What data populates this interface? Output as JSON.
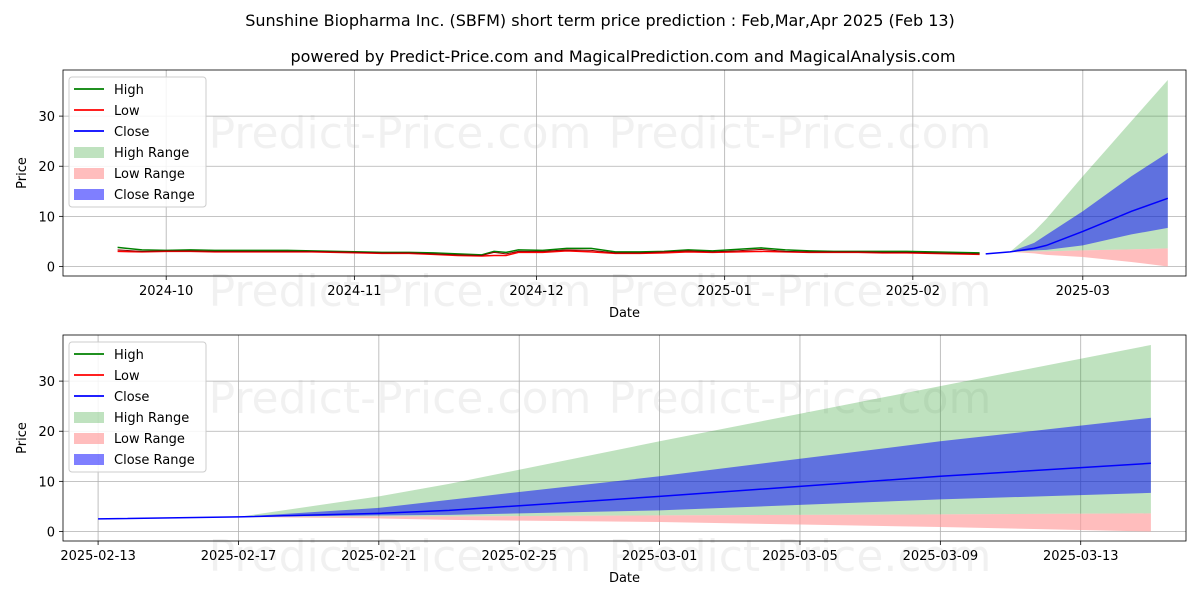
{
  "title": "Sunshine Biopharma Inc. (SBFM) short term price prediction : Feb,Mar,Apr 2025 (Feb 13)",
  "subtitle": "powered by Predict-Price.com and MagicalPrediction.com and MagicalAnalysis.com",
  "watermark": "Predict-Price.com",
  "colors": {
    "high": "#008000",
    "low": "#ff0000",
    "close": "#0000ff",
    "high_range": "#2ca02c",
    "low_range": "#ff9999",
    "close_range": "#0000ff",
    "grid": "#b0b0b0"
  },
  "chart_data": [
    {
      "type": "line",
      "xlabel": "Date",
      "ylabel": "Price",
      "grid": true,
      "legend": "upper-left",
      "legend_entries": [
        "High",
        "Low",
        "Close",
        "High Range",
        "Low Range",
        "Close Range"
      ],
      "xlim": [
        "2024-09-14",
        "2025-03-18"
      ],
      "ylim": [
        -1.9,
        39.2
      ],
      "xticks": [
        "2024-10-01",
        "2024-11-01",
        "2024-12-01",
        "2025-01-01",
        "2025-02-01",
        "2025-03-01"
      ],
      "xtick_labels": [
        "2024-10",
        "2024-11",
        "2024-12",
        "2025-01",
        "2025-02",
        "2025-03"
      ],
      "yticks": [
        0,
        10,
        20,
        30
      ],
      "history": {
        "dates": [
          "2024-09-23",
          "2024-09-27",
          "2024-10-01",
          "2024-10-05",
          "2024-10-09",
          "2024-10-13",
          "2024-10-17",
          "2024-10-21",
          "2024-10-25",
          "2024-10-29",
          "2024-11-02",
          "2024-11-06",
          "2024-11-10",
          "2024-11-14",
          "2024-11-18",
          "2024-11-22",
          "2024-11-24",
          "2024-11-26",
          "2024-11-28",
          "2024-12-02",
          "2024-12-06",
          "2024-12-10",
          "2024-12-14",
          "2024-12-18",
          "2024-12-22",
          "2024-12-26",
          "2024-12-30",
          "2025-01-03",
          "2025-01-07",
          "2025-01-11",
          "2025-01-15",
          "2025-01-19",
          "2025-01-23",
          "2025-01-27",
          "2025-01-31",
          "2025-02-04",
          "2025-02-08",
          "2025-02-12"
        ],
        "high": [
          3.8,
          3.3,
          3.2,
          3.3,
          3.2,
          3.2,
          3.2,
          3.2,
          3.1,
          3.0,
          2.9,
          2.8,
          2.8,
          2.7,
          2.5,
          2.3,
          3.0,
          2.8,
          3.3,
          3.2,
          3.6,
          3.6,
          2.9,
          2.9,
          3.0,
          3.3,
          3.1,
          3.4,
          3.7,
          3.3,
          3.1,
          3.0,
          3.0,
          3.0,
          3.0,
          2.9,
          2.8,
          2.7
        ],
        "low": [
          3.0,
          2.9,
          3.0,
          3.0,
          2.9,
          2.9,
          2.9,
          2.9,
          2.9,
          2.8,
          2.7,
          2.6,
          2.6,
          2.4,
          2.2,
          2.1,
          2.2,
          2.2,
          2.8,
          2.8,
          3.1,
          2.9,
          2.6,
          2.6,
          2.7,
          2.9,
          2.8,
          2.9,
          3.0,
          2.9,
          2.8,
          2.8,
          2.8,
          2.7,
          2.7,
          2.6,
          2.5,
          2.4
        ],
        "close": [
          3.3,
          3.0,
          3.1,
          3.1,
          3.0,
          3.0,
          3.0,
          3.0,
          3.0,
          2.9,
          2.8,
          2.7,
          2.7,
          2.5,
          2.3,
          2.2,
          2.8,
          2.5,
          3.0,
          3.0,
          3.3,
          3.2,
          2.7,
          2.7,
          2.9,
          3.1,
          2.9,
          3.1,
          3.4,
          3.0,
          2.9,
          2.9,
          2.9,
          2.8,
          2.8,
          2.7,
          2.6,
          2.5
        ]
      },
      "forecast": {
        "dates": [
          "2025-02-13",
          "2025-02-17",
          "2025-02-21",
          "2025-02-23",
          "2025-03-01",
          "2025-03-05",
          "2025-03-09",
          "2025-03-15"
        ],
        "close": [
          2.5,
          2.9,
          3.6,
          4.2,
          7.0,
          9.0,
          11.0,
          13.6
        ],
        "high_lo": [
          2.5,
          2.9,
          3.0,
          3.0,
          3.2,
          3.3,
          3.4,
          3.6
        ],
        "high_hi": [
          2.5,
          2.9,
          7.0,
          9.5,
          18.0,
          23.5,
          29.0,
          37.2
        ],
        "low_lo": [
          2.5,
          2.9,
          2.6,
          2.3,
          1.9,
          1.4,
          0.9,
          0.0
        ],
        "low_hi": [
          2.5,
          2.9,
          3.0,
          3.0,
          3.2,
          3.3,
          3.4,
          3.6
        ],
        "close_lo": [
          2.5,
          2.9,
          3.2,
          3.3,
          4.2,
          5.3,
          6.4,
          7.7
        ],
        "close_hi": [
          2.5,
          2.9,
          4.7,
          6.3,
          11.0,
          14.5,
          18.0,
          22.7
        ]
      }
    },
    {
      "type": "line",
      "xlabel": "Date",
      "ylabel": "Price",
      "grid": true,
      "legend": "upper-left",
      "legend_entries": [
        "High",
        "Low",
        "Close",
        "High Range",
        "Low Range",
        "Close Range"
      ],
      "xlim": [
        "2025-02-12",
        "2025-03-16"
      ],
      "ylim": [
        -1.9,
        39.2
      ],
      "xticks": [
        "2025-02-13",
        "2025-02-17",
        "2025-02-21",
        "2025-02-25",
        "2025-03-01",
        "2025-03-05",
        "2025-03-09",
        "2025-03-13"
      ],
      "xtick_labels": [
        "2025-02-13",
        "2025-02-17",
        "2025-02-21",
        "2025-02-25",
        "2025-03-01",
        "2025-03-05",
        "2025-03-09",
        "2025-03-13"
      ],
      "yticks": [
        0,
        10,
        20,
        30
      ],
      "forecast": {
        "dates": [
          "2025-02-13",
          "2025-02-17",
          "2025-02-21",
          "2025-02-23",
          "2025-03-01",
          "2025-03-05",
          "2025-03-09",
          "2025-03-15"
        ],
        "close": [
          2.5,
          2.9,
          3.6,
          4.2,
          7.0,
          9.0,
          11.0,
          13.6
        ],
        "high_lo": [
          2.5,
          2.9,
          3.0,
          3.0,
          3.2,
          3.3,
          3.4,
          3.6
        ],
        "high_hi": [
          2.5,
          2.9,
          7.0,
          9.5,
          18.0,
          23.5,
          29.0,
          37.2
        ],
        "low_lo": [
          2.5,
          2.9,
          2.6,
          2.3,
          1.9,
          1.4,
          0.9,
          0.0
        ],
        "low_hi": [
          2.5,
          2.9,
          3.0,
          3.0,
          3.2,
          3.3,
          3.4,
          3.6
        ],
        "close_lo": [
          2.5,
          2.9,
          3.2,
          3.3,
          4.2,
          5.3,
          6.4,
          7.7
        ],
        "close_hi": [
          2.5,
          2.9,
          4.7,
          6.3,
          11.0,
          14.5,
          18.0,
          22.7
        ]
      }
    }
  ]
}
